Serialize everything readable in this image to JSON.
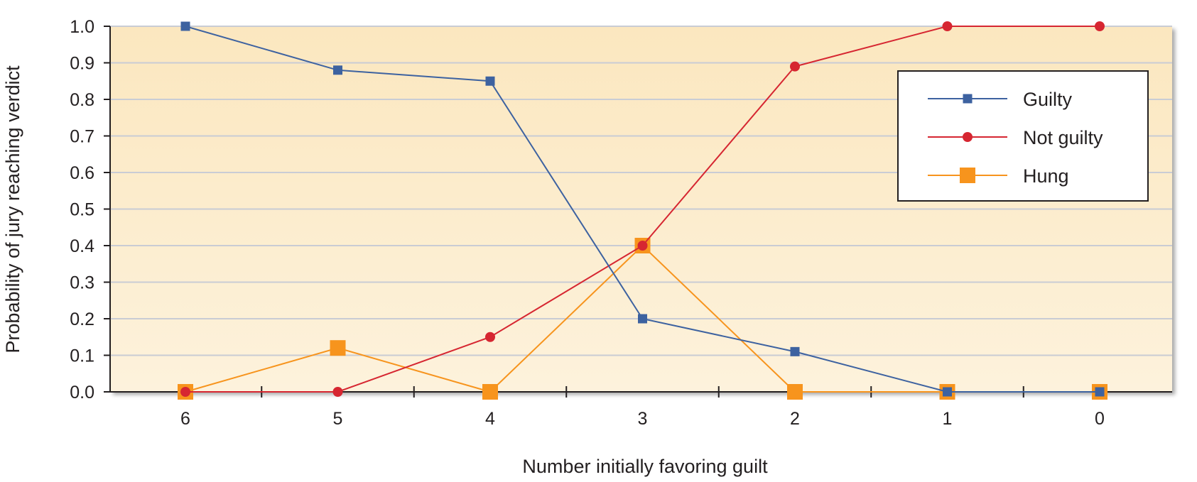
{
  "chart_data": {
    "type": "line",
    "title": "",
    "xlabel": "Number initially favoring guilt",
    "ylabel": "Probability of jury reaching verdict",
    "categories": [
      "6",
      "5",
      "4",
      "3",
      "2",
      "1",
      "0"
    ],
    "ylim": [
      0,
      1.0
    ],
    "yticks": [
      "0.0",
      "0.1",
      "0.2",
      "0.3",
      "0.4",
      "0.5",
      "0.6",
      "0.7",
      "0.8",
      "0.9",
      "1.0"
    ],
    "grid": true,
    "legend_position": "top-right",
    "series": [
      {
        "name": "Guilty",
        "color": "#3d62a0",
        "marker": "square-small",
        "values": [
          1.0,
          0.88,
          0.85,
          0.2,
          0.11,
          0.0,
          0.0
        ]
      },
      {
        "name": "Not guilty",
        "color": "#d62631",
        "marker": "circle",
        "values": [
          0.0,
          0.0,
          0.15,
          0.4,
          0.89,
          1.0,
          1.0
        ]
      },
      {
        "name": "Hung",
        "color": "#f7941d",
        "marker": "square-large",
        "values": [
          0.0,
          0.12,
          0.0,
          0.4,
          0.0,
          0.0,
          0.0
        ]
      }
    ],
    "colors": {
      "plot_background": "#fdecc8",
      "gridline": "#c9ccd4",
      "axis": "#231f20"
    }
  }
}
